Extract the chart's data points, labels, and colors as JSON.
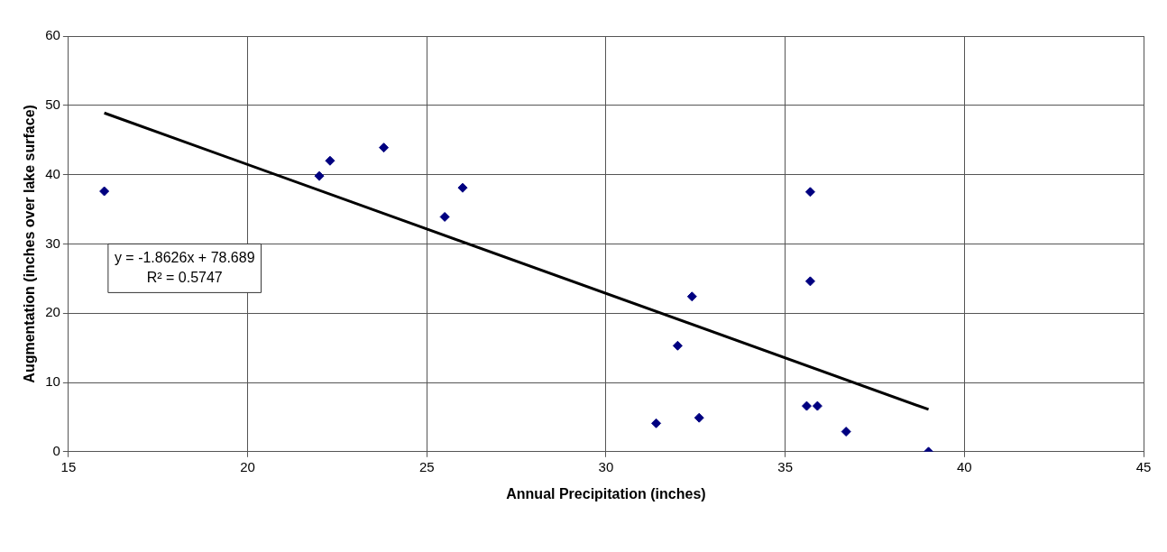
{
  "chart_data": {
    "type": "scatter",
    "xlabel": "Annual Precipitation (inches)",
    "ylabel": "Augmentation (inches over lake surface)",
    "xlim": [
      15,
      45
    ],
    "xticks": [
      15,
      20,
      25,
      30,
      35,
      40,
      45
    ],
    "ylim": [
      0,
      60
    ],
    "yticks": [
      0,
      10,
      20,
      30,
      40,
      50,
      60
    ],
    "grid": true,
    "legend": false,
    "marker": "diamond",
    "series": [
      {
        "type": "scatter",
        "color": "#000080",
        "x": [
          16.0,
          22.0,
          22.3,
          23.8,
          25.5,
          26.0,
          31.4,
          32.0,
          32.4,
          32.6,
          35.7,
          35.7,
          35.6,
          35.9,
          36.7,
          39.0
        ],
        "values": [
          37.6,
          39.8,
          42.0,
          43.9,
          33.9,
          38.1,
          4.1,
          15.3,
          22.4,
          4.9,
          37.5,
          24.6,
          6.6,
          6.6,
          2.9,
          0
        ]
      },
      {
        "type": "line",
        "color": "#000000",
        "marker": "none",
        "line_style": "solid",
        "x": [
          16.0,
          39.0
        ],
        "values": [
          48.9,
          6.1
        ]
      }
    ],
    "annotations": [
      "y = -1.8626x + 78.689",
      "R² = 0.5747"
    ]
  }
}
